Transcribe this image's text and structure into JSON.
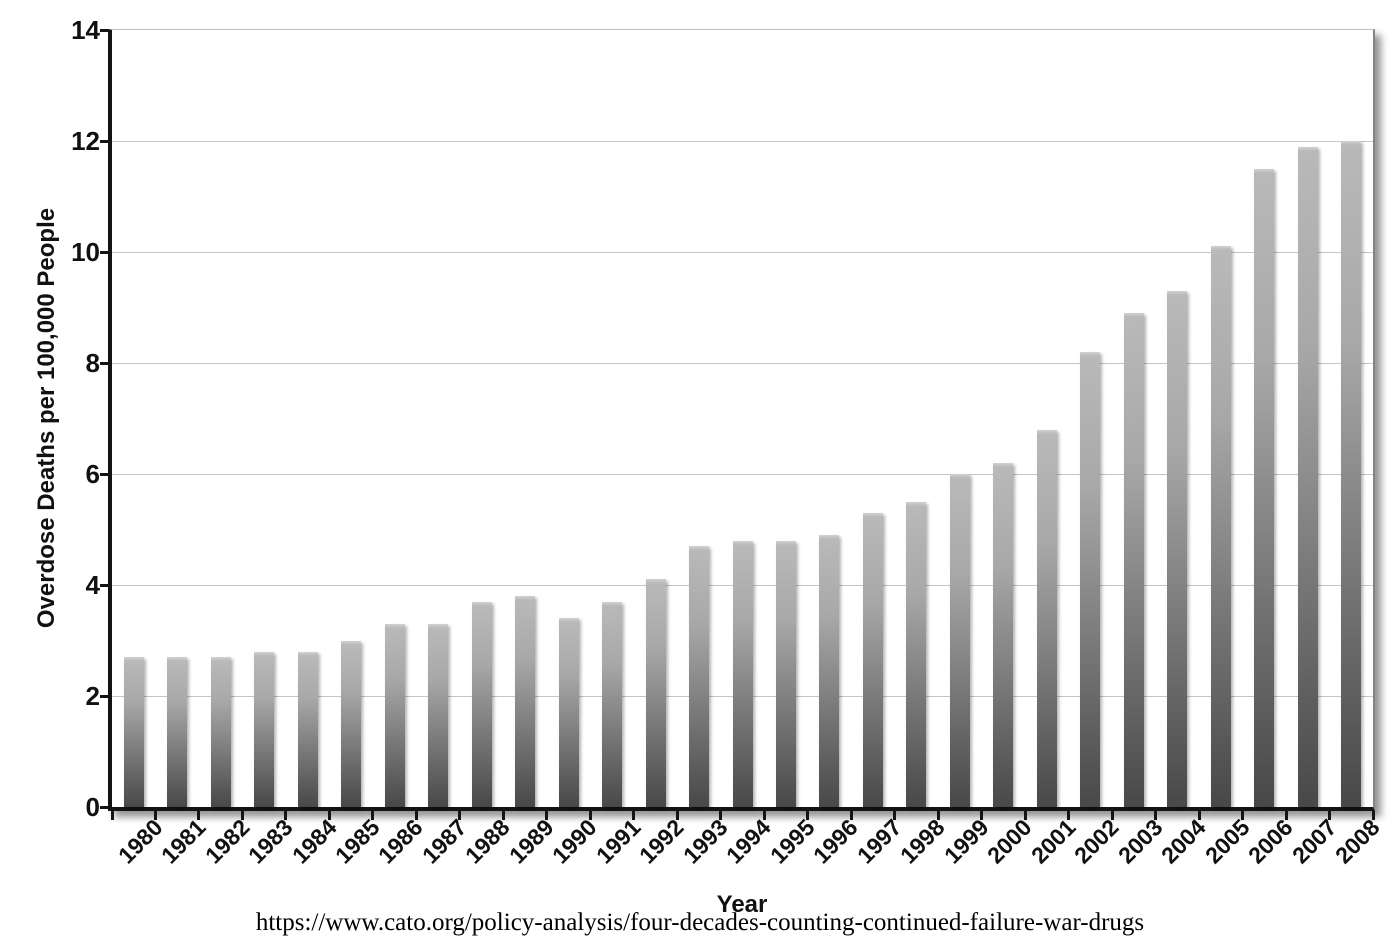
{
  "chart_data": {
    "type": "bar",
    "title": "",
    "xlabel": "Year",
    "ylabel": "Overdose Deaths per 100,000 People",
    "source_url": "https://www.cato.org/policy-analysis/four-decades-counting-continued-failure-war-drugs",
    "ylim": [
      0,
      14
    ],
    "yticks": [
      0,
      2,
      4,
      6,
      8,
      10,
      12,
      14
    ],
    "grid": "horizontal",
    "legend_position": "none",
    "categories": [
      "1980",
      "1981",
      "1982",
      "1983",
      "1984",
      "1985",
      "1986",
      "1987",
      "1988",
      "1989",
      "1990",
      "1991",
      "1992",
      "1993",
      "1994",
      "1995",
      "1996",
      "1997",
      "1998",
      "1999",
      "2000",
      "2001",
      "2002",
      "2003",
      "2004",
      "2005",
      "2006",
      "2007",
      "2008"
    ],
    "values": [
      2.7,
      2.7,
      2.7,
      2.8,
      2.8,
      3.0,
      3.3,
      3.3,
      3.7,
      3.8,
      3.4,
      3.7,
      4.1,
      4.7,
      4.8,
      4.8,
      4.9,
      5.3,
      5.5,
      6.0,
      6.2,
      6.8,
      8.2,
      8.9,
      9.3,
      10.1,
      11.5,
      11.9,
      12.0
    ],
    "colors": {
      "bar_top": "#d2d2d2",
      "bar_bottom": "#484848",
      "gridline": "#c4c4c4",
      "axis": "#141414",
      "background": "#ffffff"
    }
  }
}
